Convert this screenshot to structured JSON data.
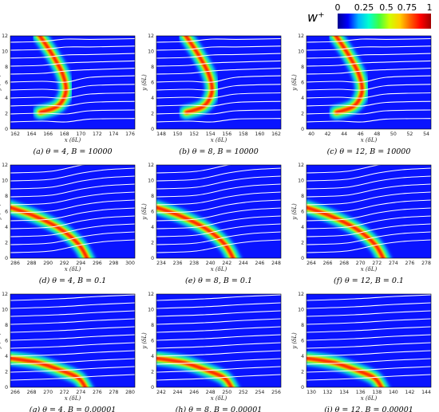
{
  "colorbar": {
    "title": "w⁺",
    "ticks": [
      "0",
      "0.25",
      "0.5",
      "0.75",
      "1"
    ],
    "colors": [
      "#00008f",
      "#0000ff",
      "#00b4ff",
      "#00ffd0",
      "#40ff40",
      "#d0ff00",
      "#ffd000",
      "#ff6000",
      "#ff0000",
      "#a00000"
    ]
  },
  "colors": {
    "field_background": "#0a14ff",
    "streamline": "#ffffff",
    "flame_core": "#ff1a00"
  },
  "panels": [
    {
      "caption": "(a) θ = 4, B = 10000",
      "xlabel": "x (δL)",
      "ylabel": "y (δL)",
      "xticks": [
        "162",
        "164",
        "166",
        "168",
        "170",
        "172",
        "174",
        "176"
      ],
      "yticks": [
        "0",
        "2",
        "4",
        "6",
        "8",
        "10",
        "12"
      ],
      "front": "curved"
    },
    {
      "caption": "(b) θ = 8, B = 10000",
      "xlabel": "x (δL)",
      "ylabel": "y (δL)",
      "xticks": [
        "148",
        "150",
        "152",
        "154",
        "156",
        "158",
        "160",
        "162"
      ],
      "yticks": [
        "0",
        "2",
        "4",
        "6",
        "8",
        "10",
        "12"
      ],
      "front": "curved"
    },
    {
      "caption": "(c) θ = 12, B = 10000",
      "xlabel": "x (δL)",
      "ylabel": "y (δL)",
      "xticks": [
        "40",
        "42",
        "44",
        "46",
        "48",
        "50",
        "52",
        "54"
      ],
      "yticks": [
        "0",
        "2",
        "4",
        "6",
        "8",
        "10",
        "12"
      ],
      "front": "curved"
    },
    {
      "caption": "(d) θ = 4, B = 0.1",
      "xlabel": "x (δL)",
      "ylabel": "y (δL)",
      "xticks": [
        "286",
        "288",
        "290",
        "292",
        "294",
        "296",
        "298",
        "300"
      ],
      "yticks": [
        "0",
        "2",
        "4",
        "6",
        "8",
        "10",
        "12"
      ],
      "front": "diagonal"
    },
    {
      "caption": "(e) θ = 8, B = 0.1",
      "xlabel": "x (δL)",
      "ylabel": "y (δL)",
      "xticks": [
        "234",
        "236",
        "238",
        "240",
        "242",
        "244",
        "246",
        "248"
      ],
      "yticks": [
        "0",
        "2",
        "4",
        "6",
        "8",
        "10",
        "12"
      ],
      "front": "diagonal"
    },
    {
      "caption": "(f) θ = 12, B = 0.1",
      "xlabel": "x (δL)",
      "ylabel": "y (δL)",
      "xticks": [
        "264",
        "266",
        "268",
        "270",
        "272",
        "274",
        "276",
        "278"
      ],
      "yticks": [
        "0",
        "2",
        "4",
        "6",
        "8",
        "10",
        "12"
      ],
      "front": "diagonal"
    },
    {
      "caption": "(g) θ = 4, B = 0.00001",
      "xlabel": "x (δL)",
      "ylabel": "y (δL)",
      "xticks": [
        "266",
        "268",
        "270",
        "272",
        "274",
        "276",
        "278",
        "280"
      ],
      "yticks": [
        "0",
        "2",
        "4",
        "6",
        "8",
        "10",
        "12"
      ],
      "front": "low"
    },
    {
      "caption": "(h) θ = 8, B = 0.00001",
      "xlabel": "x (δL)",
      "ylabel": "y (δL)",
      "xticks": [
        "242",
        "244",
        "246",
        "248",
        "250",
        "252",
        "254",
        "256"
      ],
      "yticks": [
        "0",
        "2",
        "4",
        "6",
        "8",
        "10",
        "12"
      ],
      "front": "low"
    },
    {
      "caption": "(i) θ = 12, B = 0.00001",
      "xlabel": "x (δL)",
      "ylabel": "y (δL)",
      "xticks": [
        "130",
        "132",
        "134",
        "136",
        "138",
        "140",
        "142",
        "144"
      ],
      "yticks": [
        "0",
        "2",
        "4",
        "6",
        "8",
        "10",
        "12"
      ],
      "front": "low"
    }
  ]
}
